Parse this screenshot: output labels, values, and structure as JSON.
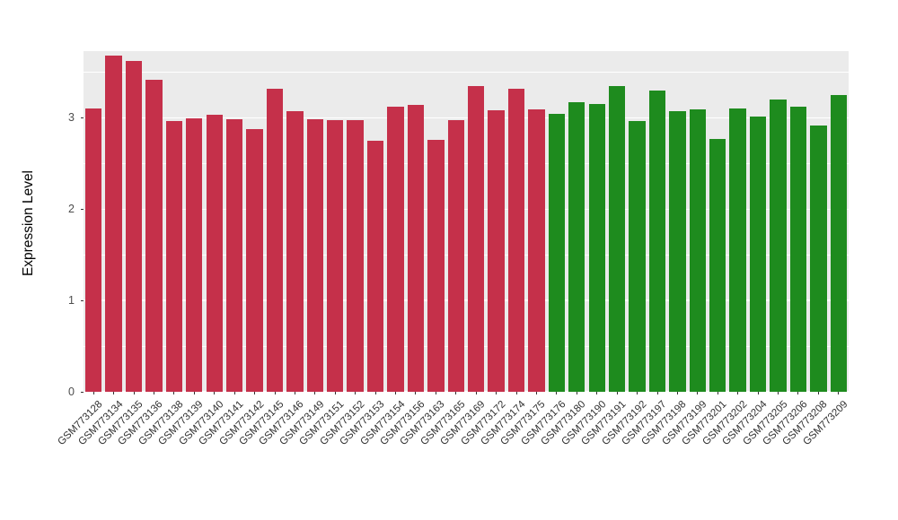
{
  "chart_data": {
    "type": "bar",
    "title": "",
    "xlabel": "",
    "ylabel": "Expression Level",
    "categories": [
      "GSM773128",
      "GSM773134",
      "GSM773135",
      "GSM773136",
      "GSM773138",
      "GSM773139",
      "GSM773140",
      "GSM773141",
      "GSM773142",
      "GSM773145",
      "GSM773146",
      "GSM773149",
      "GSM773151",
      "GSM773152",
      "GSM773153",
      "GSM773154",
      "GSM773156",
      "GSM773163",
      "GSM773165",
      "GSM773169",
      "GSM773172",
      "GSM773174",
      "GSM773175",
      "GSM773176",
      "GSM773180",
      "GSM773190",
      "GSM773191",
      "GSM773192",
      "GSM773197",
      "GSM773198",
      "GSM773199",
      "GSM773201",
      "GSM773202",
      "GSM773204",
      "GSM773205",
      "GSM773206",
      "GSM773208",
      "GSM773209"
    ],
    "values": [
      3.1,
      3.68,
      3.62,
      3.42,
      2.96,
      2.99,
      3.03,
      2.98,
      2.88,
      3.32,
      3.07,
      2.98,
      2.97,
      2.97,
      2.75,
      3.12,
      3.14,
      2.76,
      2.97,
      3.35,
      3.08,
      3.32,
      3.09,
      3.04,
      3.17,
      3.15,
      3.35,
      2.96,
      3.3,
      3.07,
      3.09,
      2.77,
      3.1,
      3.01,
      3.2,
      3.12,
      2.92,
      3.25
    ],
    "color_groups": [
      {
        "name": "group-1",
        "color": "#C5304A",
        "from": 0,
        "to": 22
      },
      {
        "name": "group-2",
        "color": "#1E8B1E",
        "from": 23,
        "to": 37
      }
    ],
    "yticks": [
      0,
      1,
      2,
      3
    ],
    "minor_ticks": [
      0.5,
      1.5,
      2.5,
      3.5
    ],
    "ylim": [
      0,
      3.73
    ],
    "grid": "white-on-gray",
    "panel_bg": "#EBEBEB",
    "legend": "none",
    "bar_width_fraction": 0.82,
    "x_label_rotation_deg": -45
  }
}
